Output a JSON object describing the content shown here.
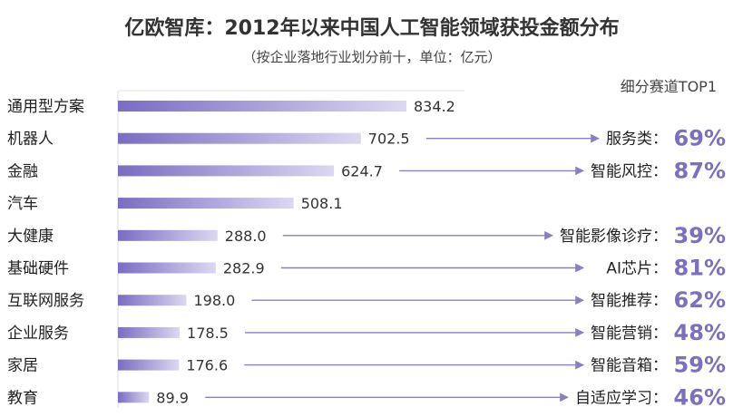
{
  "chart_data": {
    "type": "bar",
    "orientation": "horizontal",
    "title": "亿欧智库：2012年以来中国人工智能领域获投金额分布",
    "subtitle": "（按企业落地行业划分前十，单位：亿元）",
    "top1_header": "细分赛道TOP1",
    "categories": [
      "通用型方案",
      "机器人",
      "金融",
      "汽车",
      "大健康",
      "基础硬件",
      "互联网服务",
      "企业服务",
      "家居",
      "教育"
    ],
    "values": [
      834.2,
      702.5,
      624.7,
      508.1,
      288.0,
      282.9,
      198.0,
      178.5,
      176.6,
      89.9
    ],
    "value_labels": [
      "834.2",
      "702.5",
      "624.7",
      "508.1",
      "288.0",
      "282.9",
      "198.0",
      "178.5",
      "176.6",
      "89.9"
    ],
    "top1": [
      null,
      {
        "label": "服务类：",
        "pct": "69%"
      },
      {
        "label": "智能风控：",
        "pct": "87%"
      },
      null,
      {
        "label": "智能影像诊疗：",
        "pct": "39%"
      },
      {
        "label": "AI芯片：",
        "pct": "81%"
      },
      {
        "label": "智能推荐：",
        "pct": "62%"
      },
      {
        "label": "智能营销：",
        "pct": "48%"
      },
      {
        "label": "智能音箱：",
        "pct": "59%"
      },
      {
        "label": "自适应学习：",
        "pct": "46%"
      }
    ],
    "xlim": [
      0,
      834.2
    ],
    "colors": {
      "bar_start": "#7a6cc4",
      "bar_end": "#dcd8f1",
      "arrow": "#8a80c0",
      "pct": "#7d6fc0"
    }
  }
}
